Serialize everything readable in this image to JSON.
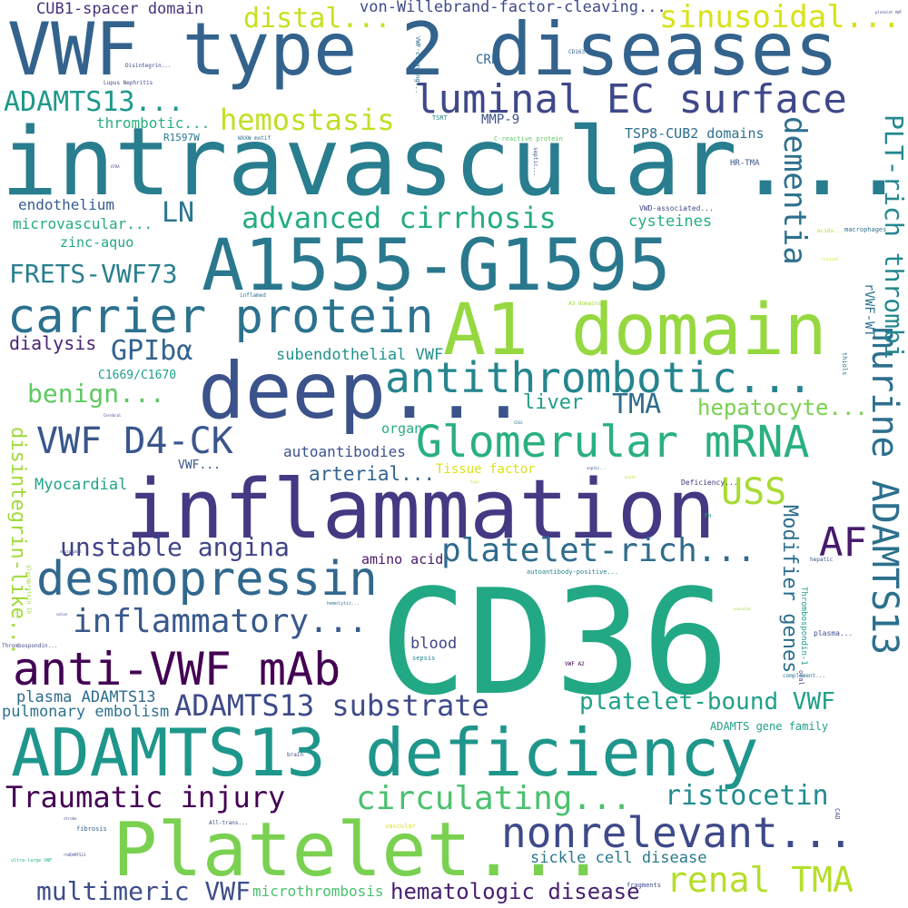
{
  "words": [
    {
      "text": "CD36",
      "color": "#22a884"
    },
    {
      "text": "intravascular...",
      "color": "#287d8e"
    },
    {
      "text": "VWF type 2 diseases",
      "color": "#33638d"
    },
    {
      "text": "ADAMTS13 deficiency",
      "color": "#1f968b"
    },
    {
      "text": "inflammation",
      "color": "#443983"
    },
    {
      "text": "A1555-G1595",
      "color": "#2a788e"
    },
    {
      "text": "Platelet...",
      "color": "#7ad151"
    },
    {
      "text": "deep...",
      "color": "#3b528b"
    },
    {
      "text": "A1 domain",
      "color": "#95d840"
    },
    {
      "text": "carrier protein",
      "color": "#2c728e"
    },
    {
      "text": "nonrelevant...",
      "color": "#3e4a89"
    },
    {
      "text": "desmopressin",
      "color": "#31688e"
    },
    {
      "text": "Glomerular mRNA",
      "color": "#2ab07f"
    },
    {
      "text": "antithrombotic...",
      "color": "#25858e"
    },
    {
      "text": "luminal EC surface",
      "color": "#3f4889"
    },
    {
      "text": "anti-VWF mAb",
      "color": "#440154"
    },
    {
      "text": "murine ADAMTS13",
      "color": "#2d708e"
    },
    {
      "text": "VWF D4-CK",
      "color": "#39568c"
    },
    {
      "text": "renal TMA",
      "color": "#b5de2b"
    },
    {
      "text": "inflammatory...",
      "color": "#38598c"
    },
    {
      "text": "Traumatic injury",
      "color": "#440154"
    },
    {
      "text": "platelet-rich...",
      "color": "#2f6c8e"
    },
    {
      "text": "circulating...",
      "color": "#4ac16d"
    },
    {
      "text": "ADAMTS13 substrate",
      "color": "#3e4a89"
    },
    {
      "text": "unstable angina",
      "color": "#414487"
    },
    {
      "text": "AF",
      "color": "#481a6c"
    },
    {
      "text": "dementia",
      "color": "#2d708e"
    },
    {
      "text": "sinusoidal...",
      "color": "#d8e219"
    },
    {
      "text": "advanced cirrhosis",
      "color": "#25ab82"
    },
    {
      "text": "hemostasis",
      "color": "#c2df23"
    },
    {
      "text": "ADAMTS13...",
      "color": "#1f988b"
    },
    {
      "text": "distal...",
      "color": "#c8e020"
    },
    {
      "text": "USS",
      "color": "#a8db34"
    },
    {
      "text": "FRETS-VWF73",
      "color": "#277f8e"
    },
    {
      "text": "GPIbα",
      "color": "#33638d"
    },
    {
      "text": "PLT-rich thrombi",
      "color": "#23888e"
    },
    {
      "text": "multimeric VWF",
      "color": "#3d4e8a"
    },
    {
      "text": "hematologic disease",
      "color": "#481f70"
    },
    {
      "text": "platelet-bound VWF",
      "color": "#1fa088"
    },
    {
      "text": "ristocetin",
      "color": "#228b8d"
    },
    {
      "text": "benign...",
      "color": "#5ec962"
    },
    {
      "text": "TMA",
      "color": "#2f6c8e"
    },
    {
      "text": "LN",
      "color": "#2b748e"
    },
    {
      "text": "Modifier genes",
      "color": "#2e6e8e"
    },
    {
      "text": "hepatocyte...",
      "color": "#7ad151"
    },
    {
      "text": "disintegrin-like...",
      "color": "#a0da39"
    },
    {
      "text": "dialysis",
      "color": "#482576"
    },
    {
      "text": "plasma ADAMTS13",
      "color": "#2f6c8e"
    },
    {
      "text": "pulmonary embolism",
      "color": "#2c728e"
    },
    {
      "text": "sickle cell disease",
      "color": "#2a788e"
    },
    {
      "text": "arterial...",
      "color": "#33638d"
    },
    {
      "text": "liver",
      "color": "#1f9e89"
    },
    {
      "text": "subendothelial VWF",
      "color": "#21918c"
    },
    {
      "text": "blood",
      "color": "#414487"
    },
    {
      "text": "CUB1-spacer domain",
      "color": "#46327e"
    },
    {
      "text": "von-Willebrand-factor-cleaving...",
      "color": "#3e4989"
    },
    {
      "text": "Myocardial",
      "color": "#20a486"
    },
    {
      "text": "cysteines",
      "color": "#27ad81"
    },
    {
      "text": "autoantibodies",
      "color": "#3b528b"
    },
    {
      "text": "microvascular...",
      "color": "#25ab82"
    },
    {
      "text": "rVWF-WT",
      "color": "#2c728e"
    },
    {
      "text": "microthrombosis",
      "color": "#4ac16d"
    },
    {
      "text": "endothelium",
      "color": "#365c8d"
    },
    {
      "text": "thrombotic...",
      "color": "#2ab07f"
    },
    {
      "text": "TSP8-CUB2 domains",
      "color": "#2e6e8e"
    },
    {
      "text": "amino acid",
      "color": "#48186a"
    },
    {
      "text": "zinc-aquo",
      "color": "#22a884"
    },
    {
      "text": "organ",
      "color": "#25ab82"
    },
    {
      "text": "MMP-9",
      "color": "#3b528b"
    },
    {
      "text": "CRP",
      "color": "#31688e"
    },
    {
      "text": "Tissue factor",
      "color": "#d8e219"
    },
    {
      "text": "VWF...",
      "color": "#3b528b"
    },
    {
      "text": "C1669/C1670",
      "color": "#1f9e89"
    },
    {
      "text": "ADAMTS gene family",
      "color": "#1fa088"
    },
    {
      "text": "R1597W",
      "color": "#2a788e"
    },
    {
      "text": "HR-TMA",
      "color": "#3b528b"
    },
    {
      "text": "Deficiency...",
      "color": "#46327e"
    },
    {
      "text": "WXXW motif",
      "color": "#2c728e"
    },
    {
      "text": "TSRT",
      "color": "#26828e"
    },
    {
      "text": "Lupus Nephritis",
      "color": "#3e4a89"
    },
    {
      "text": "C-reactive protein",
      "color": "#5ec962"
    },
    {
      "text": "VWD-associated...",
      "color": "#3e4a89"
    },
    {
      "text": "macrophages",
      "color": "#2c728e"
    },
    {
      "text": "Thrombospondin-1",
      "color": "#1f9e89"
    },
    {
      "text": "plasma...",
      "color": "#3b528b"
    },
    {
      "text": "complement...",
      "color": "#2c728e"
    },
    {
      "text": "fibrosis",
      "color": "#33638d"
    },
    {
      "text": "fragments",
      "color": "#3e4a89"
    },
    {
      "text": "autoantibody-positive...",
      "color": "#26828e"
    },
    {
      "text": "VWF A2",
      "color": "#440154"
    },
    {
      "text": "sepsis",
      "color": "#26828e"
    },
    {
      "text": "A3 domains",
      "color": "#a0da39"
    },
    {
      "text": "inflamed",
      "color": "#2c728e"
    },
    {
      "text": "hemolytic...",
      "color": "#2c728e"
    },
    {
      "text": "All-trans...",
      "color": "#3e4a89"
    },
    {
      "text": "vascular",
      "color": "#d8e219"
    },
    {
      "text": "brain",
      "color": "#3e4a89"
    },
    {
      "text": "hepatic",
      "color": "#3b528b"
    },
    {
      "text": "Disintegrin...",
      "color": "#3e4a89"
    },
    {
      "text": "CD163",
      "color": "#33638d"
    },
    {
      "text": "VWF-cleaving...",
      "color": "#2c728e"
    },
    {
      "text": "acids...",
      "color": "#b5de2b"
    },
    {
      "text": "thiols",
      "color": "#2c728e"
    },
    {
      "text": "oral",
      "color": "#3e4a89"
    },
    {
      "text": "FH",
      "color": "#2ab07f"
    },
    {
      "text": "CAD",
      "color": "#3e4a89"
    },
    {
      "text": "Thrombospondin...",
      "color": "#3e4a89"
    },
    {
      "text": "glycoprotein Ib",
      "color": "#a0da39"
    },
    {
      "text": "septic...",
      "color": "#3b528b"
    },
    {
      "text": "type",
      "color": "#d8e219"
    },
    {
      "text": "CDSS",
      "color": "#2c728e"
    },
    {
      "text": "ATRA",
      "color": "#3e4a89"
    },
    {
      "text": "TP",
      "color": "#3e4a89"
    },
    {
      "text": "ultra-large VWF",
      "color": "#2ab07f"
    },
    {
      "text": "rhADAMTS13",
      "color": "#3e4a89"
    },
    {
      "text": "platelet VWF",
      "color": "#3e4a89"
    },
    {
      "text": "stroke",
      "color": "#3e4a89"
    },
    {
      "text": "Cerebral",
      "color": "#3e4a89"
    },
    {
      "text": "vascular",
      "color": "#a0da39"
    },
    {
      "text": "valve",
      "color": "#3e4a89"
    },
    {
      "text": "neutrophil",
      "color": "#3e4a89"
    },
    {
      "text": "clinical",
      "color": "#d8e219"
    },
    {
      "text": "acute",
      "color": "#b5de2b"
    },
    {
      "text": "CTD",
      "color": "#3e4a89"
    }
  ]
}
